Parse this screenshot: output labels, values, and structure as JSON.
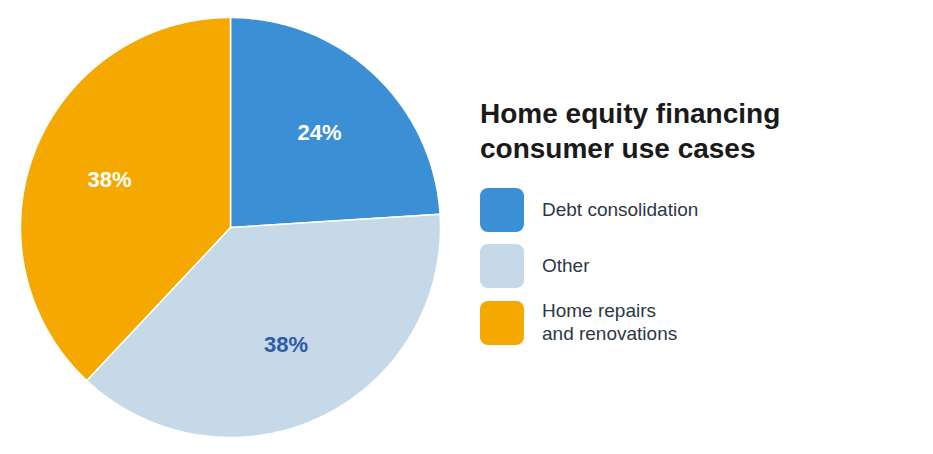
{
  "chart_data": {
    "type": "pie",
    "title": "Home equity financing\nconsumer use cases",
    "categories": [
      "Debt consolidation",
      "Other",
      "Home repairs\nand renovations"
    ],
    "values": [
      24,
      38,
      38
    ],
    "value_labels": [
      "24%",
      "38%",
      "38%"
    ],
    "colors": [
      "#3B8FD4",
      "#C5D9E8",
      "#F5A800"
    ],
    "data_labels": true,
    "legend": "right"
  }
}
